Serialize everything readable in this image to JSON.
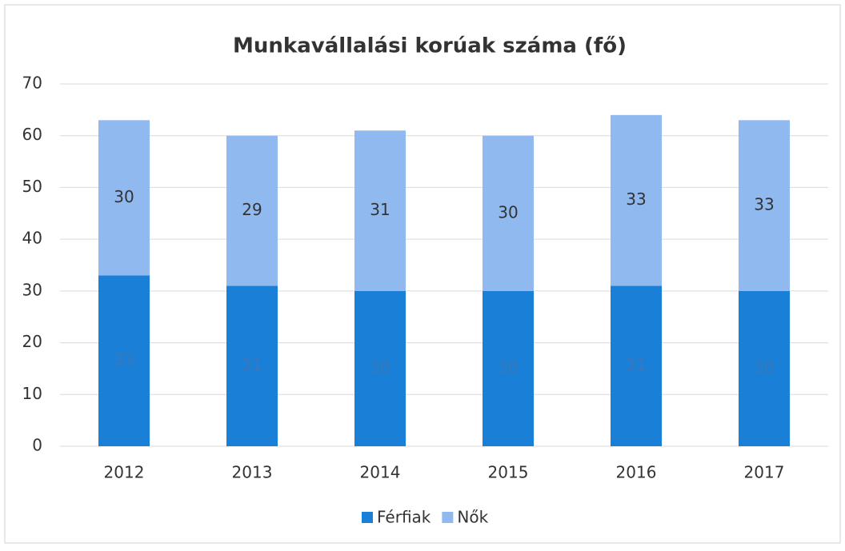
{
  "chart_data": {
    "type": "stacked_bar",
    "title": "Munkavállalási korúak száma (fő)",
    "categories": [
      "2012",
      "2013",
      "2014",
      "2015",
      "2016",
      "2017"
    ],
    "series": [
      {
        "name": "Férfiak",
        "color": "#1a7fd6",
        "values": [
          33,
          31,
          30,
          30,
          31,
          30
        ]
      },
      {
        "name": "Nők",
        "color": "#8fb9ef",
        "values": [
          30,
          29,
          31,
          30,
          33,
          33
        ]
      }
    ],
    "ylim": [
      0,
      70
    ],
    "yticks": [
      0,
      10,
      20,
      30,
      40,
      50,
      60,
      70
    ],
    "grid": true,
    "legend": "bottom"
  }
}
